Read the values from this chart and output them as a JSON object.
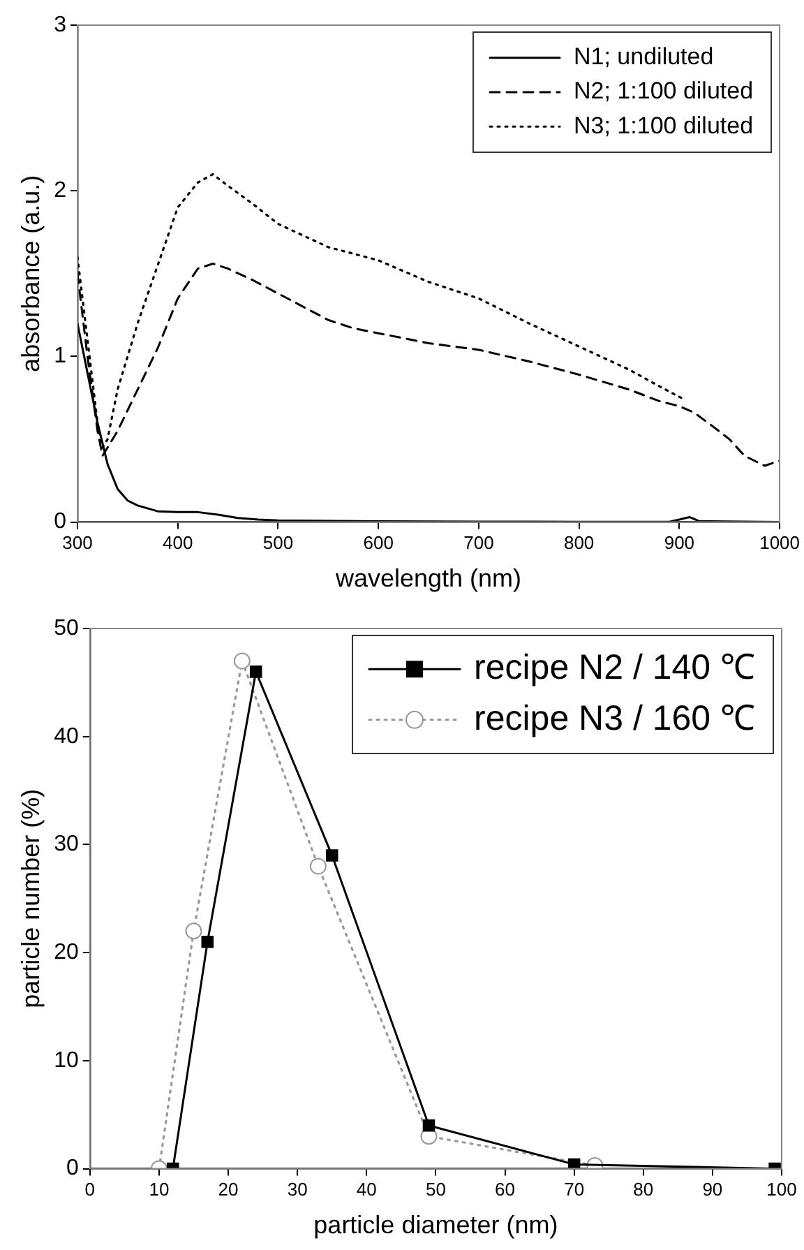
{
  "chart_data": [
    {
      "type": "line",
      "xlabel": "wavelength (nm)",
      "ylabel": "absorbance (a.u.)",
      "xlim": [
        300,
        1000
      ],
      "ylim": [
        0,
        3
      ],
      "xticks": [
        300,
        400,
        500,
        600,
        700,
        800,
        900,
        1000
      ],
      "yticks": [
        0,
        1,
        2,
        3
      ],
      "grid": false,
      "legend": "top right",
      "marker": "none",
      "series": [
        {
          "name": "N1; undiluted",
          "color": "#000000",
          "line_style": "solid",
          "x": [
            300,
            310,
            320,
            330,
            340,
            350,
            360,
            380,
            400,
            420,
            440,
            460,
            480,
            500,
            600,
            700,
            800,
            890,
            900,
            910,
            920,
            1000
          ],
          "values": [
            1.2,
            0.9,
            0.6,
            0.35,
            0.2,
            0.13,
            0.1,
            0.065,
            0.06,
            0.06,
            0.045,
            0.025,
            0.015,
            0.01,
            0.005,
            0.003,
            0.002,
            0.002,
            0.015,
            0.03,
            0.005,
            0
          ]
        },
        {
          "name": "N2; 1:100 diluted",
          "color": "#000000",
          "line_style": "dashed",
          "x": [
            300,
            310,
            320,
            325,
            340,
            360,
            380,
            400,
            420,
            435,
            450,
            475,
            500,
            525,
            550,
            575,
            600,
            650,
            700,
            750,
            800,
            850,
            880,
            900,
            915,
            935,
            950,
            965,
            985,
            1000
          ],
          "values": [
            1.5,
            1.0,
            0.55,
            0.4,
            0.55,
            0.8,
            1.05,
            1.35,
            1.53,
            1.56,
            1.53,
            1.46,
            1.38,
            1.3,
            1.22,
            1.17,
            1.14,
            1.08,
            1.04,
            0.97,
            0.89,
            0.8,
            0.73,
            0.7,
            0.66,
            0.57,
            0.5,
            0.4,
            0.34,
            0.37
          ]
        },
        {
          "name": "N3; 1:100 diluted",
          "color": "#000000",
          "line_style": "dotted",
          "x": [
            300,
            310,
            320,
            325,
            330,
            340,
            360,
            380,
            400,
            420,
            435,
            450,
            475,
            500,
            550,
            600,
            650,
            700,
            750,
            800,
            850,
            880,
            905
          ],
          "values": [
            1.6,
            1.1,
            0.6,
            0.45,
            0.5,
            0.8,
            1.2,
            1.55,
            1.9,
            2.05,
            2.1,
            2.03,
            1.92,
            1.8,
            1.66,
            1.58,
            1.45,
            1.35,
            1.2,
            1.06,
            0.92,
            0.82,
            0.74
          ]
        }
      ]
    },
    {
      "type": "line",
      "xlabel": "particle diameter (nm)",
      "ylabel": "particle number (%)",
      "xlim": [
        0,
        100
      ],
      "ylim": [
        0,
        50
      ],
      "xticks": [
        0,
        10,
        20,
        30,
        40,
        50,
        60,
        70,
        80,
        90,
        100
      ],
      "yticks": [
        0,
        10,
        20,
        30,
        40,
        50
      ],
      "grid": false,
      "legend": "top right",
      "series": [
        {
          "name": "recipe N2 / 140 ℃",
          "color": "#000000",
          "marker": "square",
          "line_style": "solid",
          "x": [
            12,
            17,
            24,
            35,
            49,
            70,
            99
          ],
          "values": [
            0,
            21,
            46,
            29,
            4,
            0.4,
            0
          ]
        },
        {
          "name": "recipe N3 / 160 ℃",
          "color": "#999999",
          "marker": "circle",
          "line_style": "dotted",
          "x": [
            10,
            15,
            22,
            33,
            49,
            73
          ],
          "values": [
            0,
            22,
            47,
            28,
            3,
            0.3
          ]
        }
      ]
    }
  ]
}
